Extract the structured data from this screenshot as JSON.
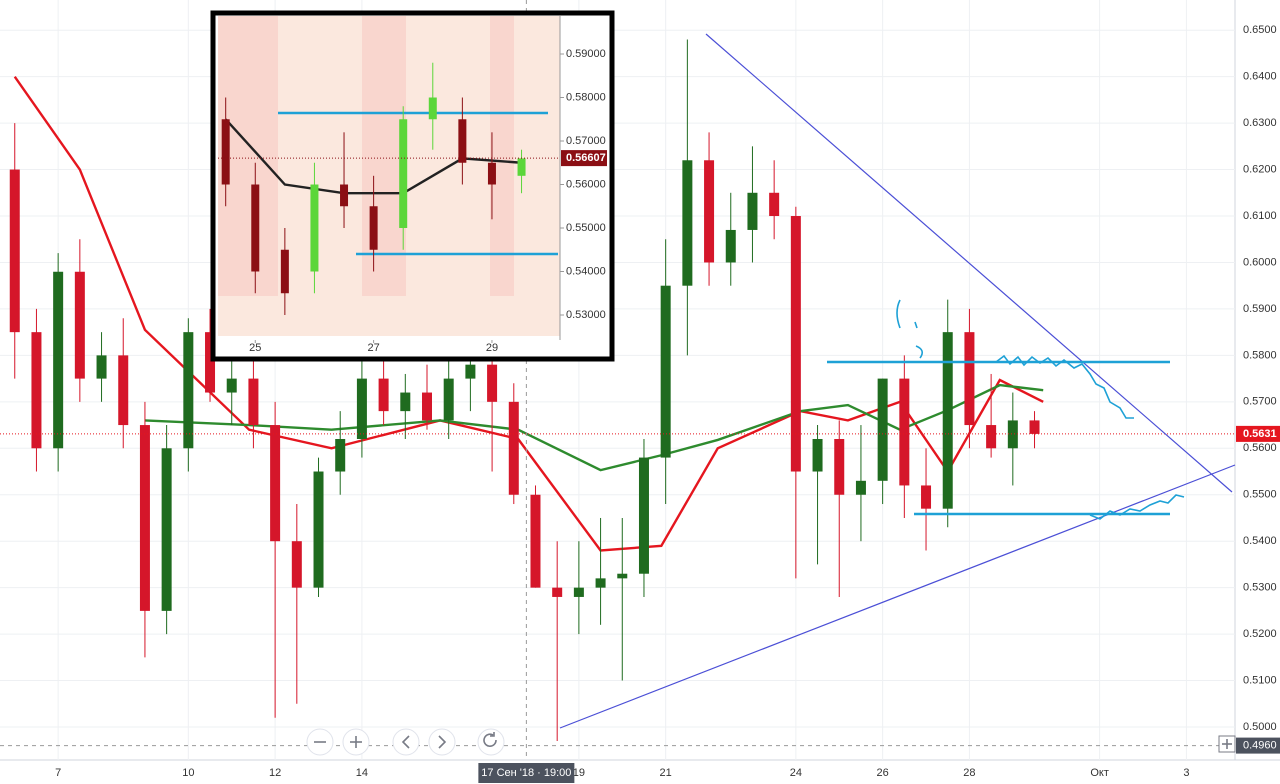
{
  "chart_data": [
    {
      "type": "candlestick",
      "x": [
        6,
        6.5,
        7,
        7.5,
        8,
        8.5,
        9,
        9.5,
        10,
        10.5,
        11,
        11.5,
        12,
        12.5,
        13,
        13.5,
        14,
        14.5,
        15,
        15.5,
        16,
        16.5,
        17,
        17.5,
        18,
        18.5,
        19,
        19.5,
        20,
        20.5,
        21,
        21.5,
        22,
        22.5,
        23,
        23.5,
        24,
        24.5,
        25,
        25.5,
        26,
        26.5,
        27,
        27.5,
        28,
        28.5,
        29,
        29.5
      ],
      "open": [
        0.62,
        0.585,
        0.56,
        0.598,
        0.575,
        0.58,
        0.565,
        0.525,
        0.56,
        0.585,
        0.572,
        0.575,
        0.565,
        0.54,
        0.53,
        0.555,
        0.562,
        0.575,
        0.568,
        0.572,
        0.566,
        0.575,
        0.578,
        0.57,
        0.55,
        0.53,
        0.528,
        0.53,
        0.532,
        0.533,
        0.558,
        0.595,
        0.622,
        0.6,
        0.607,
        0.615,
        0.61,
        0.555,
        0.562,
        0.55,
        0.553,
        0.575,
        0.552,
        0.547,
        0.585,
        0.565,
        0.56,
        0.566
      ],
      "high": [
        0.63,
        0.59,
        0.602,
        0.605,
        0.585,
        0.588,
        0.57,
        0.565,
        0.588,
        0.59,
        0.58,
        0.58,
        0.57,
        0.548,
        0.558,
        0.568,
        0.58,
        0.58,
        0.576,
        0.578,
        0.582,
        0.582,
        0.58,
        0.574,
        0.552,
        0.54,
        0.54,
        0.545,
        0.545,
        0.562,
        0.605,
        0.648,
        0.628,
        0.615,
        0.625,
        0.622,
        0.612,
        0.565,
        0.566,
        0.565,
        0.575,
        0.58,
        0.56,
        0.592,
        0.59,
        0.576,
        0.572,
        0.568
      ],
      "low": [
        0.575,
        0.555,
        0.555,
        0.57,
        0.57,
        0.56,
        0.515,
        0.52,
        0.555,
        0.57,
        0.565,
        0.56,
        0.502,
        0.505,
        0.528,
        0.55,
        0.558,
        0.565,
        0.562,
        0.564,
        0.562,
        0.568,
        0.555,
        0.548,
        0.53,
        0.497,
        0.52,
        0.522,
        0.51,
        0.528,
        0.548,
        0.58,
        0.595,
        0.595,
        0.6,
        0.605,
        0.532,
        0.535,
        0.528,
        0.54,
        0.548,
        0.545,
        0.538,
        0.543,
        0.56,
        0.558,
        0.552,
        0.56
      ],
      "close": [
        0.585,
        0.56,
        0.598,
        0.575,
        0.58,
        0.565,
        0.525,
        0.56,
        0.585,
        0.572,
        0.575,
        0.565,
        0.54,
        0.53,
        0.555,
        0.562,
        0.575,
        0.568,
        0.572,
        0.566,
        0.575,
        0.578,
        0.57,
        0.55,
        0.53,
        0.528,
        0.53,
        0.532,
        0.533,
        0.558,
        0.595,
        0.622,
        0.6,
        0.607,
        0.615,
        0.61,
        0.555,
        0.562,
        0.55,
        0.553,
        0.575,
        0.552,
        0.547,
        0.585,
        0.565,
        0.56,
        0.566,
        0.5631
      ],
      "up_color": "#1f6b1f",
      "down_color": "#d5162a",
      "lines": [
        {
          "color": "#e5161f",
          "x": [
            6,
            7.5,
            9,
            11.4,
            13.3,
            15.8,
            17.6,
            19.5,
            20.9,
            22.2,
            24.1,
            25.2,
            26.4,
            27.5,
            28.7,
            29.7
          ],
          "values": [
            0.64,
            0.62,
            0.5855,
            0.564,
            0.56,
            0.566,
            0.562,
            0.538,
            0.539,
            0.56,
            0.568,
            0.566,
            0.57,
            0.555,
            0.5747,
            0.57
          ]
        },
        {
          "color": "#2e8b2e",
          "x": [
            9,
            11.4,
            13.3,
            15.8,
            17.6,
            19.5,
            20.9,
            22.2,
            24.1,
            25.2,
            26.4,
            27.5,
            28.7,
            29.7
          ],
          "values": [
            0.566,
            0.565,
            0.564,
            0.566,
            0.564,
            0.5553,
            0.5585,
            0.5618,
            0.568,
            0.5693,
            0.564,
            0.5682,
            0.5736,
            0.5725
          ]
        }
      ],
      "xlim": [
        5.66,
        34.12
      ],
      "ylim": [
        0.4929,
        0.6565
      ],
      "xticks": [
        7,
        10,
        12,
        14,
        19,
        21,
        24,
        26,
        28,
        {
          "value": 31,
          "label": "Окт"
        },
        {
          "value": 33,
          "label": "3"
        }
      ],
      "yticks": [
        {
          "value": 0.65,
          "label": "0.6500"
        },
        {
          "value": 0.64,
          "label": "0.6400"
        },
        {
          "value": 0.63,
          "label": "0.6300"
        },
        {
          "value": 0.62,
          "label": "0.6200"
        },
        {
          "value": 0.61,
          "label": "0.6100"
        },
        {
          "value": 0.6,
          "label": "0.6000"
        },
        {
          "value": 0.59,
          "label": "0.5900"
        },
        {
          "value": 0.58,
          "label": "0.5800"
        },
        {
          "value": 0.57,
          "label": "0.5700"
        },
        {
          "value": 0.56,
          "label": "0.5600"
        },
        {
          "value": 0.55,
          "label": "0.5500"
        },
        {
          "value": 0.54,
          "label": "0.5400"
        },
        {
          "value": 0.53,
          "label": "0.5300"
        },
        {
          "value": 0.52,
          "label": "0.5200"
        },
        {
          "value": 0.51,
          "label": "0.5100"
        },
        {
          "value": 0.5,
          "label": "0.5000"
        }
      ],
      "last_price": 0.5631,
      "last_price_color": "#e5161f",
      "crosshair": {
        "x": 17.79,
        "y": {
          "value": 0.496,
          "label": "0.4960"
        },
        "label": "17 Сен '18 · 19:00"
      },
      "grid": true
    },
    {
      "type": "candlestick",
      "x": [
        24.5,
        25,
        25.5,
        26,
        26.5,
        27,
        27.5,
        28,
        28.5,
        29,
        29.5
      ],
      "open": [
        0.575,
        0.56,
        0.545,
        0.54,
        0.56,
        0.555,
        0.55,
        0.575,
        0.575,
        0.565,
        0.562
      ],
      "high": [
        0.58,
        0.565,
        0.55,
        0.565,
        0.572,
        0.562,
        0.578,
        0.588,
        0.58,
        0.572,
        0.568
      ],
      "low": [
        0.555,
        0.535,
        0.53,
        0.535,
        0.55,
        0.54,
        0.545,
        0.568,
        0.56,
        0.552,
        0.558
      ],
      "close": [
        0.56,
        0.54,
        0.535,
        0.56,
        0.555,
        0.545,
        0.575,
        0.58,
        0.565,
        0.56,
        0.566
      ],
      "up_color": "#5bd63a",
      "down_color": "#8b0f14",
      "lines": [
        {
          "color": "#222222",
          "x": [
            24.5,
            25.5,
            26.5,
            27.5,
            28.5,
            29.5
          ],
          "values": [
            0.575,
            0.56,
            0.558,
            0.558,
            0.566,
            0.565
          ]
        }
      ],
      "xlim": [
        24.37,
        30.15
      ],
      "ylim": [
        0.52425,
        0.59874
      ],
      "xticks": [
        25,
        27,
        29
      ],
      "yticks": [
        {
          "value": 0.59,
          "label": "0.59000"
        },
        {
          "value": 0.58,
          "label": "0.58000"
        },
        {
          "value": 0.57,
          "label": "0.57000"
        },
        {
          "value": 0.56,
          "label": "0.56000"
        },
        {
          "value": 0.55,
          "label": "0.55000"
        },
        {
          "value": 0.54,
          "label": "0.54000"
        },
        {
          "value": 0.53,
          "label": "0.53000"
        }
      ],
      "last_price": 0.56607,
      "last_price_color": "#8b0f14",
      "grid": false
    }
  ]
}
